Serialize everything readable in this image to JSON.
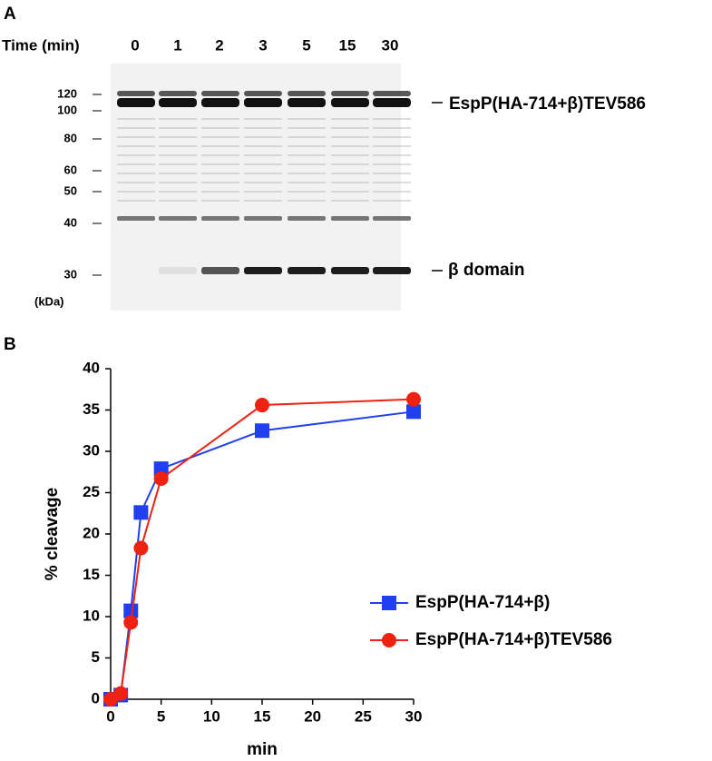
{
  "panel_a": {
    "label": "A",
    "time_label": "Time (min)",
    "lanes": [
      "0",
      "1",
      "2",
      "3",
      "5",
      "15",
      "30"
    ],
    "markers": [
      "120",
      "100",
      "80",
      "60",
      "50",
      "40",
      "30"
    ],
    "unit": "(kDa)",
    "band_labels": [
      "EspP(HA-714+β)TEV586",
      "β domain"
    ]
  },
  "panel_b": {
    "label": "B"
  },
  "chart_data": {
    "type": "line",
    "x_label": "min",
    "y_label": "% cleavage",
    "x": [
      0,
      1,
      2,
      3,
      5,
      15,
      30
    ],
    "series": [
      {
        "name": "EspP(HA-714+β)",
        "color": "#1f3ff0",
        "marker": "square",
        "values": [
          0,
          0.5,
          10.7,
          22.6,
          27.9,
          32.5,
          34.8
        ]
      },
      {
        "name": "EspP(HA-714+β)TEV586",
        "color": "#ee2211",
        "marker": "circle",
        "values": [
          0,
          0.7,
          9.3,
          18.3,
          26.7,
          35.6,
          36.3
        ]
      }
    ],
    "xlim": [
      0,
      30
    ],
    "xticks": [
      0,
      5,
      10,
      15,
      20,
      25,
      30
    ],
    "ylim": [
      0,
      40
    ],
    "yticks": [
      0,
      5,
      10,
      15,
      20,
      25,
      30,
      35,
      40
    ],
    "grid": false,
    "legend": "right"
  }
}
